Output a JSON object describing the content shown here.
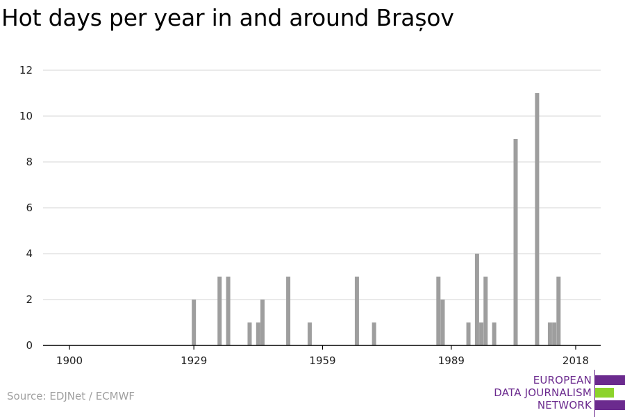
{
  "title": "Hot days per year in and around Brașov",
  "source": "Source: EDJNet / ECMWF",
  "logo": {
    "lines": [
      "EUROPEAN",
      "DATA JOURNALISM",
      "NETWORK"
    ],
    "colors": {
      "purple": "#6b2a8e",
      "green": "#8cd32b"
    }
  },
  "colors": {
    "bars": "#9e9e9e",
    "grid": "#dddddd",
    "axis": "#000000"
  },
  "chart_data": {
    "type": "bar",
    "title": "Hot days per year in and around Brașov",
    "xlabel": "",
    "ylabel": "",
    "xlim": [
      1900,
      2018
    ],
    "ylim": [
      0,
      12
    ],
    "x_ticks": [
      1900,
      1929,
      1959,
      1989,
      2018
    ],
    "y_ticks": [
      0,
      2,
      4,
      6,
      8,
      10,
      12
    ],
    "grid": true,
    "legend": "none",
    "x": [
      1929,
      1935,
      1937,
      1942,
      1944,
      1945,
      1951,
      1956,
      1967,
      1971,
      1986,
      1987,
      1993,
      1995,
      1996,
      1997,
      1999,
      2004,
      2009,
      2012,
      2013,
      2014
    ],
    "values": [
      2,
      3,
      3,
      1,
      1,
      2,
      3,
      1,
      3,
      1,
      3,
      2,
      1,
      4,
      1,
      3,
      1,
      9,
      11,
      1,
      1,
      3
    ]
  }
}
